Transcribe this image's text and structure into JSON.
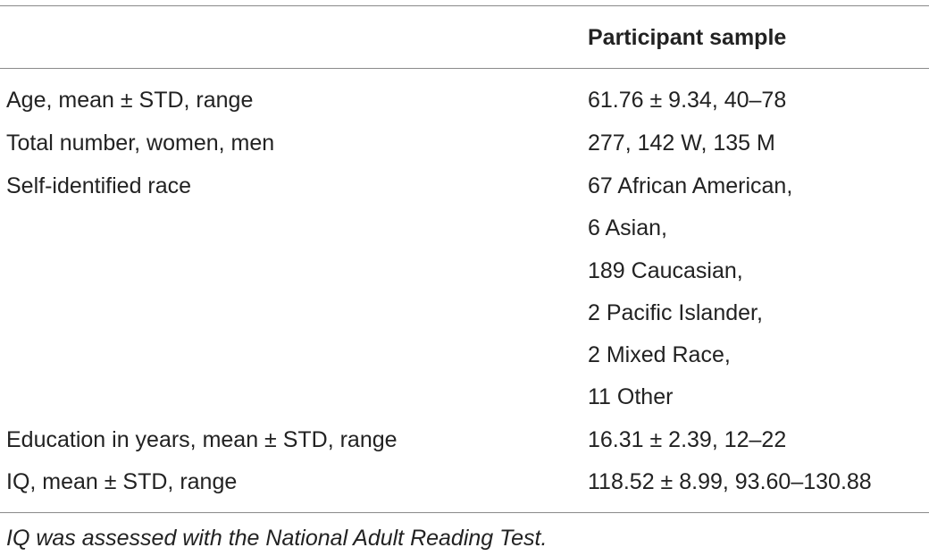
{
  "table": {
    "column_header": "Participant sample",
    "rows": [
      {
        "label": "Age, mean ± STD, range",
        "values": [
          "61.76 ± 9.34, 40–78"
        ]
      },
      {
        "label": "Total number, women, men",
        "values": [
          "277, 142 W, 135 M"
        ]
      },
      {
        "label": "Self-identified race",
        "values": [
          "67 African American,",
          "6 Asian,",
          "189 Caucasian,",
          "2 Pacific Islander,",
          "2 Mixed Race,",
          "11 Other"
        ]
      },
      {
        "label": "Education in years, mean ± STD, range",
        "values": [
          "16.31 ± 2.39, 12–22"
        ]
      },
      {
        "label": "IQ, mean ± STD, range",
        "values": [
          "118.52 ± 8.99, 93.60–130.88"
        ]
      }
    ],
    "footnote": "IQ was assessed with the National Adult Reading Test."
  }
}
